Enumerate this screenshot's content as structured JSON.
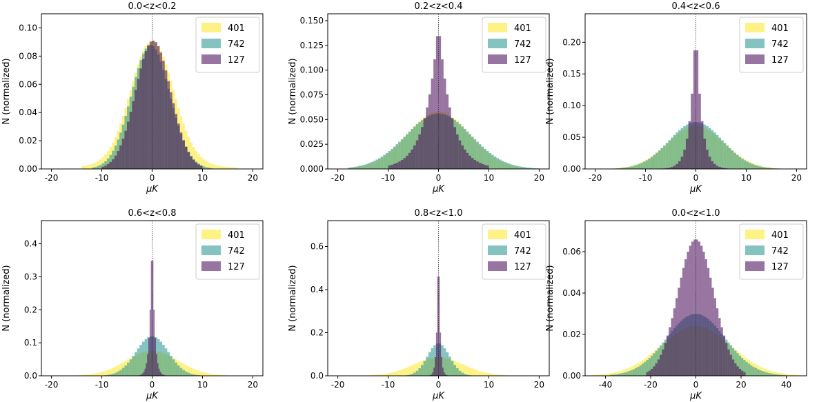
{
  "figure": {
    "series_colors": {
      "401": "#fde725",
      "742": "#21918c",
      "127": "#440154"
    },
    "series_opacity": 0.55
  },
  "chart_data": [
    {
      "type": "bar",
      "title": "0.0<z<0.2",
      "xlabel": "μK",
      "ylabel": "N (normalized)",
      "xlim": [
        -22,
        22
      ],
      "ylim": [
        0,
        0.11
      ],
      "xticks": [
        "-20",
        "-10",
        "0",
        "10",
        "20"
      ],
      "xtick_values": [
        -20,
        -10,
        0,
        10,
        20
      ],
      "yticks": [
        "0.00",
        "0.02",
        "0.04",
        "0.06",
        "0.08",
        "0.10"
      ],
      "ytick_values": [
        0,
        0.02,
        0.04,
        0.06,
        0.08,
        0.1
      ],
      "legend": [
        "401",
        "742",
        "127"
      ],
      "legend_position": "top-right",
      "series": [
        {
          "name": "401",
          "shape": {
            "kind": "gauss",
            "amp": 0.087,
            "mu": 0,
            "sigma": 4.2,
            "tail_amp": 0.004,
            "tail_sigma": 10
          },
          "range": [
            -14,
            17
          ],
          "bin": 0.5
        },
        {
          "name": "742",
          "shape": {
            "kind": "gauss",
            "amp": 0.088,
            "mu": -0.3,
            "sigma": 3.8
          },
          "range": [
            -12,
            12
          ],
          "bin": 0.5
        },
        {
          "name": "127",
          "shape": {
            "kind": "gauss",
            "amp": 0.091,
            "mu": 0.2,
            "sigma": 3.5
          },
          "range": [
            -10,
            10
          ],
          "bin": 0.5
        }
      ]
    },
    {
      "type": "bar",
      "title": "0.2<z<0.4",
      "xlabel": "μK",
      "ylabel": "N (normalized)",
      "xlim": [
        -22,
        22
      ],
      "ylim": [
        0,
        0.157
      ],
      "xticks": [
        "-20",
        "-10",
        "0",
        "10",
        "20"
      ],
      "xtick_values": [
        -20,
        -10,
        0,
        10,
        20
      ],
      "yticks": [
        "0.000",
        "0.025",
        "0.050",
        "0.075",
        "0.100",
        "0.125",
        "0.150"
      ],
      "ytick_values": [
        0,
        0.025,
        0.05,
        0.075,
        0.1,
        0.125,
        0.15
      ],
      "legend": [
        "401",
        "742",
        "127"
      ],
      "legend_position": "top-right",
      "series": [
        {
          "name": "401",
          "shape": {
            "kind": "gauss",
            "amp": 0.058,
            "mu": 0,
            "sigma": 6.2
          },
          "range": [
            -18,
            20
          ],
          "bin": 0.5
        },
        {
          "name": "742",
          "shape": {
            "kind": "gauss",
            "amp": 0.056,
            "mu": 0,
            "sigma": 6.5
          },
          "range": [
            -18,
            20
          ],
          "bin": 0.5
        },
        {
          "name": "127",
          "shape": {
            "kind": "laplace",
            "amp": 0.148,
            "mu": 0,
            "b": 2.6
          },
          "range": [
            -10,
            10
          ],
          "bin": 0.5
        }
      ]
    },
    {
      "type": "bar",
      "title": "0.4<z<0.6",
      "xlabel": "μK",
      "ylabel": "N (normalized)",
      "xlim": [
        -22,
        22
      ],
      "ylim": [
        0,
        0.245
      ],
      "xticks": [
        "-20",
        "-10",
        "0",
        "10",
        "20"
      ],
      "xtick_values": [
        -20,
        -10,
        0,
        10,
        20
      ],
      "yticks": [
        "0.00",
        "0.05",
        "0.10",
        "0.15",
        "0.20"
      ],
      "ytick_values": [
        0,
        0.05,
        0.1,
        0.15,
        0.2
      ],
      "legend": [
        "401",
        "742",
        "127"
      ],
      "legend_position": "top-right",
      "series": [
        {
          "name": "401",
          "shape": {
            "kind": "gauss",
            "amp": 0.068,
            "mu": 0,
            "sigma": 5.6
          },
          "range": [
            -18,
            20
          ],
          "bin": 0.5
        },
        {
          "name": "742",
          "shape": {
            "kind": "gauss",
            "amp": 0.074,
            "mu": 0,
            "sigma": 5.3
          },
          "range": [
            -16,
            18
          ],
          "bin": 0.5
        },
        {
          "name": "127",
          "shape": {
            "kind": "laplace",
            "amp": 0.235,
            "mu": 0,
            "b": 1.1
          },
          "range": [
            -8,
            8
          ],
          "bin": 0.5
        }
      ]
    },
    {
      "type": "bar",
      "title": "0.6<z<0.8",
      "xlabel": "μK",
      "ylabel": "N (normalized)",
      "xlim": [
        -22,
        22
      ],
      "ylim": [
        0,
        0.47
      ],
      "xticks": [
        "-20",
        "-10",
        "0",
        "10",
        "20"
      ],
      "xtick_values": [
        -20,
        -10,
        0,
        10,
        20
      ],
      "yticks": [
        "0.0",
        "0.1",
        "0.2",
        "0.3",
        "0.4"
      ],
      "ytick_values": [
        0,
        0.1,
        0.2,
        0.3,
        0.4
      ],
      "legend": [
        "401",
        "742",
        "127"
      ],
      "legend_position": "top-right",
      "series": [
        {
          "name": "401",
          "shape": {
            "kind": "gauss",
            "amp": 0.075,
            "mu": 0,
            "sigma": 5.2
          },
          "range": [
            -19,
            20
          ],
          "bin": 0.5
        },
        {
          "name": "742",
          "shape": {
            "kind": "gauss",
            "amp": 0.12,
            "mu": 0,
            "sigma": 3.2
          },
          "range": [
            -12,
            14
          ],
          "bin": 0.5
        },
        {
          "name": "127",
          "shape": {
            "kind": "laplace",
            "amp": 0.46,
            "mu": 0,
            "b": 0.45
          },
          "range": [
            -4,
            4
          ],
          "bin": 0.25
        }
      ]
    },
    {
      "type": "bar",
      "title": "0.8<z<1.0",
      "xlabel": "μK",
      "ylabel": "N (normalized)",
      "xlim": [
        -22,
        22
      ],
      "ylim": [
        0,
        0.72
      ],
      "xticks": [
        "-20",
        "-10",
        "0",
        "10",
        "20"
      ],
      "xtick_values": [
        -20,
        -10,
        0,
        10,
        20
      ],
      "yticks": [
        "0.0",
        "0.2",
        "0.4",
        "0.6"
      ],
      "ytick_values": [
        0,
        0.2,
        0.4,
        0.6
      ],
      "legend": [
        "401",
        "742",
        "127"
      ],
      "legend_position": "top-right",
      "series": [
        {
          "name": "401",
          "shape": {
            "kind": "gauss",
            "amp": 0.085,
            "mu": 0,
            "sigma": 5.0
          },
          "range": [
            -19,
            20
          ],
          "bin": 0.5
        },
        {
          "name": "742",
          "shape": {
            "kind": "gauss",
            "amp": 0.15,
            "mu": 0,
            "sigma": 2.2
          },
          "range": [
            -9,
            9
          ],
          "bin": 0.5
        },
        {
          "name": "127",
          "shape": {
            "kind": "laplace",
            "amp": 0.7,
            "mu": 0,
            "b": 0.3
          },
          "range": [
            -3,
            3
          ],
          "bin": 0.25
        }
      ]
    },
    {
      "type": "bar",
      "title": "0.0<z<1.0",
      "xlabel": "μK",
      "ylabel": "N (normalized)",
      "xlim": [
        -49,
        49
      ],
      "ylim": [
        0,
        0.075
      ],
      "xticks": [
        "-40",
        "-20",
        "0",
        "20",
        "40"
      ],
      "xtick_values": [
        -40,
        -20,
        0,
        20,
        40
      ],
      "yticks": [
        "0.00",
        "0.02",
        "0.04",
        "0.06"
      ],
      "ytick_values": [
        0,
        0.02,
        0.04,
        0.06
      ],
      "legend": [
        "401",
        "742",
        "127"
      ],
      "legend_position": "top-right",
      "series": [
        {
          "name": "401",
          "shape": {
            "kind": "gauss",
            "amp": 0.024,
            "mu": 0,
            "sigma": 15.5
          },
          "range": [
            -46,
            46
          ],
          "bin": 1
        },
        {
          "name": "742",
          "shape": {
            "kind": "gauss",
            "amp": 0.03,
            "mu": 0,
            "sigma": 13
          },
          "range": [
            -38,
            40
          ],
          "bin": 1
        },
        {
          "name": "127",
          "shape": {
            "kind": "gauss",
            "amp": 0.066,
            "mu": 0,
            "sigma": 8
          },
          "range": [
            -22,
            22
          ],
          "bin": 1
        }
      ]
    }
  ]
}
